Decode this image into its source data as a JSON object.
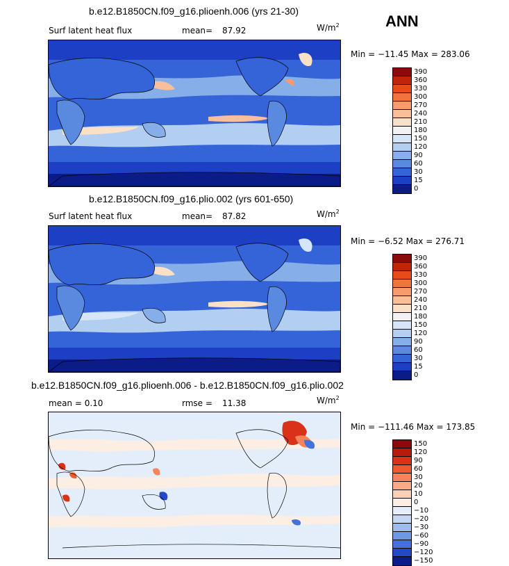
{
  "header": {
    "season": "ANN"
  },
  "panels": [
    {
      "title": "b.e12.B1850CN.f09_g16.plioenh.006 (yrs 21-30)",
      "left_label": "Surf latent heat flux",
      "stat_label": "mean=",
      "stat_value": "87.92",
      "units_base": "W/m",
      "units_exp": "2",
      "minmax": "Min = −11.45  Max = 283.06",
      "colorbar_labels": [
        "390",
        "360",
        "330",
        "300",
        "270",
        "240",
        "210",
        "180",
        "150",
        "120",
        "90",
        "60",
        "30",
        "15",
        "0"
      ],
      "colorbar_colors": [
        "#8b0a0a",
        "#c0250c",
        "#e84a1a",
        "#f2733c",
        "#f79a6e",
        "#f9bf9a",
        "#fbe0c8",
        "#f2f2f2",
        "#d6e6f8",
        "#b2cff2",
        "#86aee9",
        "#5a89e0",
        "#3563d8",
        "#1c3fc4",
        "#0b1b88"
      ]
    },
    {
      "title": "b.e12.B1850CN.f09_g16.plio.002 (yrs 601-650)",
      "left_label": "Surf latent heat flux",
      "stat_label": "mean=",
      "stat_value": "87.82",
      "units_base": "W/m",
      "units_exp": "2",
      "minmax": "Min =   −6.52  Max = 276.71",
      "colorbar_labels": [
        "390",
        "360",
        "330",
        "300",
        "270",
        "240",
        "210",
        "180",
        "150",
        "120",
        "90",
        "60",
        "30",
        "15",
        "0"
      ],
      "colorbar_colors": [
        "#8b0a0a",
        "#c0250c",
        "#e84a1a",
        "#f2733c",
        "#f79a6e",
        "#f9bf9a",
        "#fbe0c8",
        "#f2f2f2",
        "#d6e6f8",
        "#b2cff2",
        "#86aee9",
        "#5a89e0",
        "#3563d8",
        "#1c3fc4",
        "#0b1b88"
      ]
    },
    {
      "title": "b.e12.B1850CN.f09_g16.plioenh.006 - b.e12.B1850CN.f09_g16.plio.002",
      "left_label": "mean =     0.10",
      "stat_label": "rmse =",
      "stat_value": "11.38",
      "units_base": "W/m",
      "units_exp": "2",
      "minmax": "Min = −111.46  Max = 173.85",
      "colorbar_labels": [
        "150",
        "120",
        "90",
        "60",
        "30",
        "20",
        "10",
        "0",
        "−10",
        "−20",
        "−30",
        "−60",
        "−90",
        "−120",
        "−150"
      ],
      "colorbar_colors": [
        "#8b0a0a",
        "#b81a0e",
        "#d83218",
        "#ee5a30",
        "#f5845c",
        "#f9aa88",
        "#fcd0b8",
        "#fdeee4",
        "#e4eefa",
        "#c4d8f4",
        "#9cbdec",
        "#6f98e2",
        "#4572da",
        "#2548c8",
        "#0b1b88"
      ]
    }
  ]
}
